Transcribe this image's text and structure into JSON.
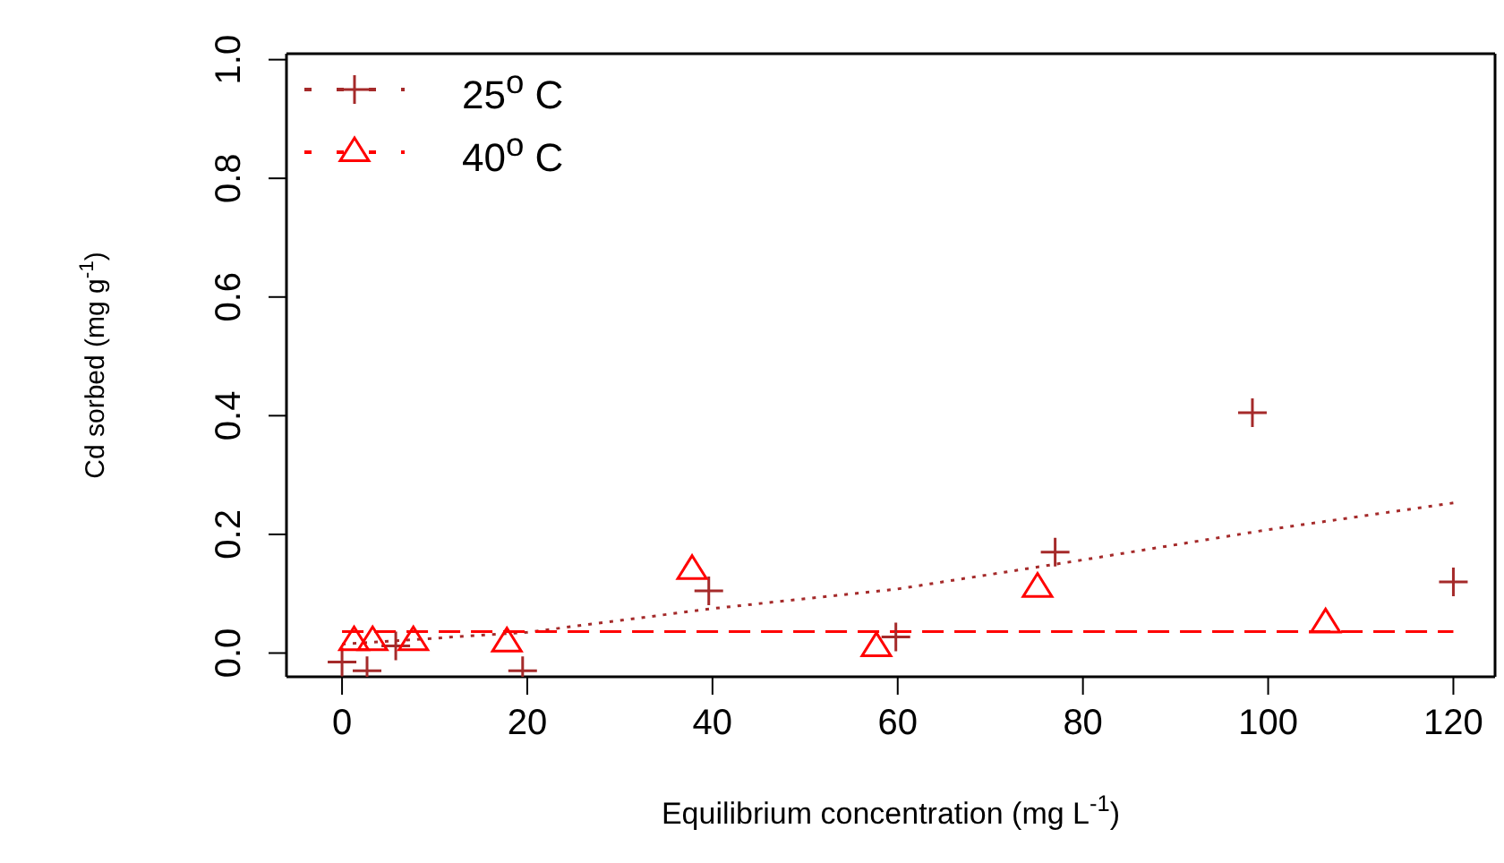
{
  "chart_data": {
    "type": "scatter",
    "xlabel": "Equilibrium concentration  (mg L$^{-1}$)",
    "ylabel": "Cd sorbed  (mg g$^{-1}$)",
    "xlim": [
      -6,
      124.5
    ],
    "ylim": [
      -0.04,
      1.01
    ],
    "xticks": [
      0,
      20,
      40,
      60,
      80,
      100,
      120
    ],
    "yticks": [
      {
        "value": 0,
        "label": "0.0"
      },
      {
        "value": 0.2,
        "label": "0.2"
      },
      {
        "value": 0.4,
        "label": "0.4"
      },
      {
        "value": 0.6,
        "label": "0.6"
      },
      {
        "value": 0.8,
        "label": "0.8"
      },
      {
        "value": 1,
        "label": "1.0"
      }
    ],
    "legend": "top left",
    "series": [
      {
        "name": "25$^{o}$ C",
        "marker": "cross",
        "color": "#a52a2a",
        "x": [
          0,
          2.7,
          5.8,
          19.5,
          39.6,
          59.8,
          77,
          98.3,
          120
        ],
        "values": [
          -0.015,
          -0.03,
          0.012,
          -0.03,
          0.105,
          0.027,
          0.17,
          0.405,
          0.12
        ]
      },
      {
        "name": "40$^{o}$ C",
        "marker": "triangle",
        "color": "#ff0000",
        "x": [
          1.3,
          3.3,
          7.7,
          17.8,
          37.8,
          57.7,
          75.1,
          106.2
        ],
        "values": [
          0.02,
          0.02,
          0.02,
          0.018,
          0.14,
          0.01,
          0.11,
          0.05
        ]
      },
      {
        "type": "line",
        "line_style": "dotted",
        "color": "#a52a2a",
        "x": [
          0,
          20,
          40,
          60,
          80,
          100,
          120
        ],
        "values": [
          0.015,
          0.035,
          0.075,
          0.108,
          0.157,
          0.208,
          0.253
        ]
      },
      {
        "type": "line",
        "line_style": "dashed",
        "color": "#ff0000",
        "x": [
          0,
          120
        ],
        "values": [
          0.036,
          0.036
        ]
      }
    ]
  }
}
